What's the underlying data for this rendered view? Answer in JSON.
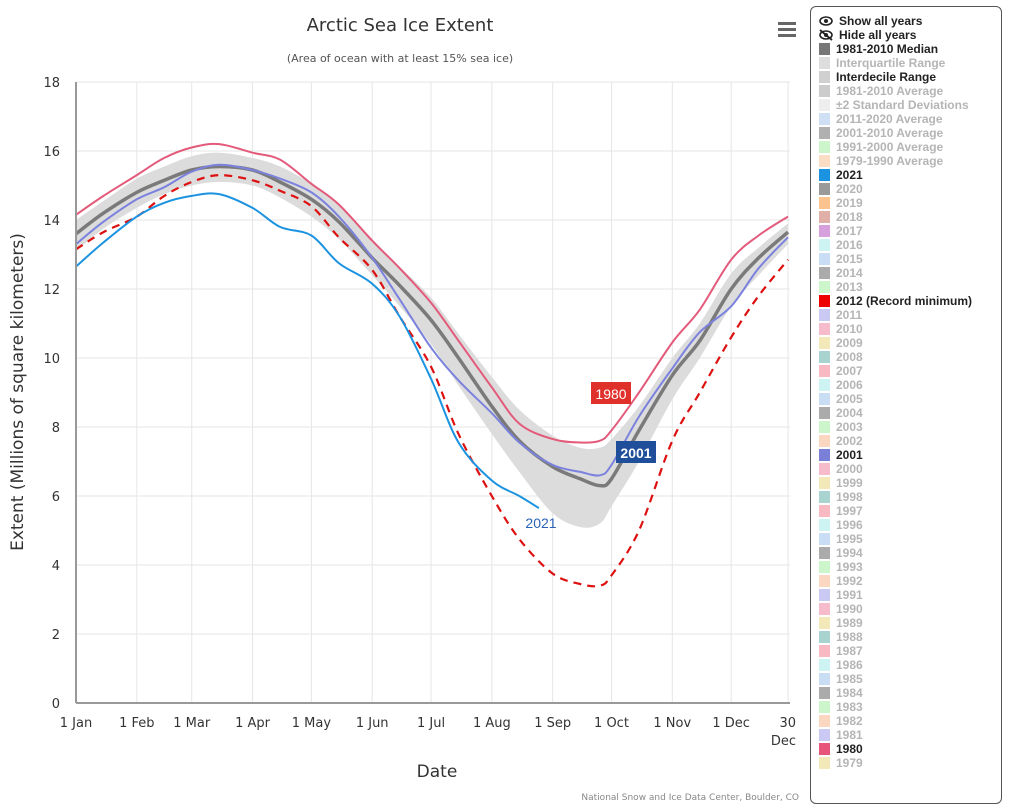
{
  "menu": {
    "icon": "hamburger-menu-icon"
  },
  "legend": {
    "show_all": "Show all years",
    "hide_all": "Hide all years",
    "items": [
      {
        "label": "1981-2010 Median",
        "color": "#777777",
        "active": true
      },
      {
        "label": "Interquartile Range",
        "color": "#dddddd",
        "active": false
      },
      {
        "label": "Interdecile Range",
        "color": "#d0d0d0",
        "active": true
      },
      {
        "label": "1981-2010 Average",
        "color": "#cccccc",
        "active": false
      },
      {
        "label": "±2 Standard Deviations",
        "color": "#eeeeee",
        "active": false
      },
      {
        "label": "2011-2020 Average",
        "color": "#cfe0f5",
        "active": false
      },
      {
        "label": "2001-2010 Average",
        "color": "#b0b0b0",
        "active": false
      },
      {
        "label": "1991-2000 Average",
        "color": "#ccf5cc",
        "active": false
      },
      {
        "label": "1979-1990 Average",
        "color": "#fbdcc4",
        "active": false
      },
      {
        "label": "2021",
        "color": "#1b93e0",
        "active": true
      },
      {
        "label": "2020",
        "color": "#9a9a9a",
        "active": false
      },
      {
        "label": "2019",
        "color": "#fcc38e",
        "active": false
      },
      {
        "label": "2018",
        "color": "#e0b0a8",
        "active": false
      },
      {
        "label": "2017",
        "color": "#d6a0dc",
        "active": false
      },
      {
        "label": "2016",
        "color": "#cdf3f3",
        "active": false
      },
      {
        "label": "2015",
        "color": "#c9ddf5",
        "active": false
      },
      {
        "label": "2014",
        "color": "#ababab",
        "active": false
      },
      {
        "label": "2013",
        "color": "#ccf5cc",
        "active": false
      },
      {
        "label": "2012 (Record minimum)",
        "color": "#ee0000",
        "active": true
      },
      {
        "label": "2011",
        "color": "#c9c9f3",
        "active": false
      },
      {
        "label": "2010",
        "color": "#f7bccb",
        "active": false
      },
      {
        "label": "2009",
        "color": "#f3e9b8",
        "active": false
      },
      {
        "label": "2008",
        "color": "#a8d3cf",
        "active": false
      },
      {
        "label": "2007",
        "color": "#f8b9c3",
        "active": false
      },
      {
        "label": "2006",
        "color": "#cdf3f3",
        "active": false
      },
      {
        "label": "2005",
        "color": "#c9ddf5",
        "active": false
      },
      {
        "label": "2004",
        "color": "#ababab",
        "active": false
      },
      {
        "label": "2003",
        "color": "#ccf5cc",
        "active": false
      },
      {
        "label": "2002",
        "color": "#fbd6c0",
        "active": false
      },
      {
        "label": "2001",
        "color": "#7a80d8",
        "active": true
      },
      {
        "label": "2000",
        "color": "#f7bccb",
        "active": false
      },
      {
        "label": "1999",
        "color": "#f3e9b8",
        "active": false
      },
      {
        "label": "1998",
        "color": "#a8d3cf",
        "active": false
      },
      {
        "label": "1997",
        "color": "#f8b9c3",
        "active": false
      },
      {
        "label": "1996",
        "color": "#cdf3f3",
        "active": false
      },
      {
        "label": "1995",
        "color": "#c9ddf5",
        "active": false
      },
      {
        "label": "1994",
        "color": "#ababab",
        "active": false
      },
      {
        "label": "1993",
        "color": "#ccf5cc",
        "active": false
      },
      {
        "label": "1992",
        "color": "#fbd6c0",
        "active": false
      },
      {
        "label": "1991",
        "color": "#c9c9f3",
        "active": false
      },
      {
        "label": "1990",
        "color": "#f7bccb",
        "active": false
      },
      {
        "label": "1989",
        "color": "#f3e9b8",
        "active": false
      },
      {
        "label": "1988",
        "color": "#a8d3cf",
        "active": false
      },
      {
        "label": "1987",
        "color": "#f8b9c3",
        "active": false
      },
      {
        "label": "1986",
        "color": "#cdf3f3",
        "active": false
      },
      {
        "label": "1985",
        "color": "#c9ddf5",
        "active": false
      },
      {
        "label": "1984",
        "color": "#ababab",
        "active": false
      },
      {
        "label": "1983",
        "color": "#ccf5cc",
        "active": false
      },
      {
        "label": "1982",
        "color": "#fbd6c0",
        "active": false
      },
      {
        "label": "1981",
        "color": "#c9c9f3",
        "active": false
      },
      {
        "label": "1980",
        "color": "#e8557a",
        "active": true
      },
      {
        "label": "1979",
        "color": "#f3e9b8",
        "active": false
      }
    ]
  },
  "chart_data": {
    "type": "line",
    "title": "Arctic Sea Ice Extent",
    "subtitle": "(Area of ocean with at least 15% sea ice)",
    "xlabel": "Date",
    "ylabel": "Extent (Millions of square kilometers)",
    "credit": "National Snow and Ice Data Center, Boulder, CO",
    "xlim": [
      1,
      365
    ],
    "ylim": [
      0,
      18
    ],
    "grid": true,
    "yticks": [
      0,
      2,
      4,
      6,
      8,
      10,
      12,
      14,
      16,
      18
    ],
    "xticks": [
      {
        "day": 1,
        "label": "1 Jan"
      },
      {
        "day": 32,
        "label": "1 Feb"
      },
      {
        "day": 60,
        "label": "1 Mar"
      },
      {
        "day": 91,
        "label": "1 Apr"
      },
      {
        "day": 121,
        "label": "1 May"
      },
      {
        "day": 152,
        "label": "1 Jun"
      },
      {
        "day": 182,
        "label": "1 Jul"
      },
      {
        "day": 213,
        "label": "1 Aug"
      },
      {
        "day": 244,
        "label": "1 Sep"
      },
      {
        "day": 274,
        "label": "1 Oct"
      },
      {
        "day": 305,
        "label": "1 Nov"
      },
      {
        "day": 335,
        "label": "1 Dec"
      },
      {
        "day": 364,
        "label": "30 Dec"
      }
    ],
    "legend_placement": "right",
    "interdecile_range": {
      "name": "Interdecile Range",
      "color": "#dcdcdc",
      "days": [
        1,
        15,
        32,
        46,
        60,
        74,
        91,
        105,
        121,
        135,
        152,
        166,
        182,
        196,
        213,
        227,
        244,
        258,
        268,
        274,
        288,
        305,
        319,
        335,
        349,
        364
      ],
      "upper": [
        14.0,
        14.55,
        15.2,
        15.55,
        15.85,
        15.95,
        15.8,
        15.55,
        15.05,
        14.45,
        13.45,
        12.65,
        11.75,
        10.7,
        9.45,
        8.5,
        7.75,
        7.4,
        7.4,
        7.65,
        8.6,
        10.0,
        11.0,
        12.45,
        13.2,
        13.9
      ],
      "lower": [
        13.1,
        13.75,
        14.35,
        14.75,
        15.0,
        15.1,
        15.0,
        14.65,
        14.1,
        13.45,
        12.4,
        11.5,
        10.4,
        9.2,
        7.8,
        6.7,
        5.5,
        5.1,
        5.2,
        5.7,
        7.0,
        8.8,
        10.0,
        11.5,
        12.4,
        13.3
      ]
    },
    "series": [
      {
        "name": "1981-2010 Median",
        "color": "#7a7a7a",
        "days": [
          1,
          15,
          32,
          46,
          60,
          74,
          91,
          105,
          121,
          135,
          152,
          166,
          182,
          196,
          213,
          227,
          244,
          258,
          268,
          274,
          288,
          305,
          319,
          335,
          349,
          364
        ],
        "values": [
          13.6,
          14.2,
          14.8,
          15.15,
          15.45,
          15.55,
          15.45,
          15.1,
          14.6,
          13.95,
          12.9,
          12.1,
          11.1,
          10.0,
          8.6,
          7.6,
          6.85,
          6.5,
          6.3,
          6.5,
          7.9,
          9.5,
          10.5,
          12.0,
          12.9,
          13.65
        ]
      },
      {
        "name": "1980",
        "color": "#e35a7a",
        "label": "1980",
        "days": [
          1,
          15,
          32,
          46,
          60,
          74,
          91,
          105,
          121,
          135,
          152,
          166,
          182,
          196,
          213,
          227,
          244,
          258,
          268,
          274,
          288,
          305,
          319,
          335,
          349,
          364
        ],
        "values": [
          14.15,
          14.7,
          15.3,
          15.8,
          16.1,
          16.2,
          15.95,
          15.75,
          15.05,
          14.45,
          13.4,
          12.6,
          11.6,
          10.5,
          9.15,
          8.1,
          7.65,
          7.55,
          7.6,
          7.9,
          9.0,
          10.45,
          11.4,
          12.85,
          13.55,
          14.1
        ]
      },
      {
        "name": "2001",
        "color": "#7b82de",
        "label": "2001",
        "days": [
          1,
          15,
          32,
          46,
          60,
          74,
          91,
          105,
          121,
          135,
          152,
          166,
          182,
          196,
          213,
          227,
          244,
          258,
          268,
          274,
          288,
          305,
          319,
          335,
          349,
          364
        ],
        "values": [
          13.3,
          13.95,
          14.6,
          14.95,
          15.4,
          15.6,
          15.45,
          15.2,
          14.8,
          14.1,
          12.9,
          11.7,
          10.3,
          9.35,
          8.4,
          7.55,
          6.9,
          6.7,
          6.6,
          6.9,
          8.3,
          9.7,
          10.75,
          11.5,
          12.6,
          13.5
        ]
      },
      {
        "name": "2012 (Record minimum)",
        "color": "#dd1111",
        "dashed": true,
        "days": [
          1,
          15,
          32,
          46,
          60,
          74,
          91,
          105,
          121,
          135,
          152,
          166,
          182,
          196,
          213,
          227,
          244,
          258,
          268,
          274,
          288,
          305,
          319,
          335,
          349,
          364
        ],
        "values": [
          13.15,
          13.65,
          14.1,
          14.7,
          15.1,
          15.3,
          15.15,
          14.85,
          14.4,
          13.5,
          12.55,
          11.2,
          9.75,
          7.8,
          6.0,
          4.75,
          3.75,
          3.45,
          3.4,
          3.7,
          5.0,
          7.6,
          9.0,
          10.6,
          11.8,
          12.85
        ]
      },
      {
        "name": "2021",
        "color": "#1b93e0",
        "label": "2021",
        "days": [
          1,
          15,
          32,
          46,
          60,
          74,
          91,
          105,
          121,
          135,
          152,
          166,
          182,
          196,
          213,
          227,
          237
        ],
        "values": [
          12.65,
          13.35,
          14.1,
          14.5,
          14.7,
          14.75,
          14.35,
          13.8,
          13.55,
          12.75,
          12.15,
          11.2,
          9.4,
          7.55,
          6.45,
          6.0,
          5.65
        ]
      }
    ]
  }
}
